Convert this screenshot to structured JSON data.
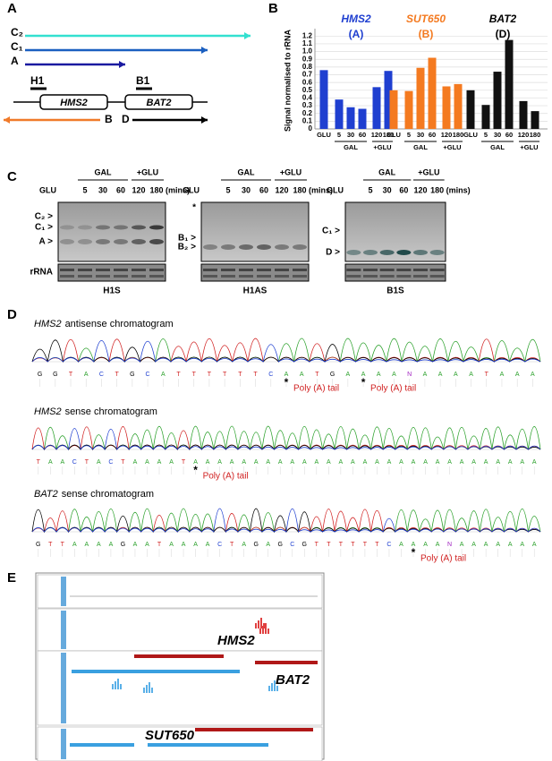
{
  "panel_labels": [
    "A",
    "B",
    "C",
    "D",
    "E"
  ],
  "panel_a": {
    "transcripts": [
      "C₂",
      "C₁",
      "A"
    ],
    "probes": [
      "H1",
      "B1"
    ],
    "genes": [
      "HMS2",
      "BAT2"
    ],
    "antisense": [
      "B",
      "D"
    ]
  },
  "chart_data": [
    {
      "type": "bar",
      "title": "HMS2",
      "subtitle": "(A)",
      "color": "#1f3fd0",
      "categories": [
        "GLU",
        "5",
        "30",
        "60",
        "120",
        "180"
      ],
      "values": [
        0.76,
        0.38,
        0.28,
        0.26,
        0.54,
        0.75
      ],
      "groups": [
        "GAL",
        "+GLU"
      ],
      "ylabel": "Signal normalised to rRNA",
      "ylim": [
        0,
        1.25
      ],
      "yticks": [
        0,
        0.1,
        0.2,
        0.3,
        0.4,
        0.5,
        0.6,
        0.7,
        0.8,
        0.9,
        {
          "value": 1,
          "label": "1.0"
        },
        1.1,
        1.2
      ],
      "grid": true
    },
    {
      "type": "bar",
      "title": "SUT650",
      "subtitle": "(B)",
      "color": "#f47a20",
      "categories": [
        "GLU",
        "5",
        "30",
        "60",
        "120",
        "180"
      ],
      "values": [
        0.5,
        0.49,
        0.79,
        0.92,
        0.55,
        0.58
      ],
      "groups": [
        "GAL",
        "+GLU"
      ]
    },
    {
      "type": "bar",
      "title": "BAT2",
      "subtitle": "(D)",
      "color": "#111111",
      "categories": [
        "GLU",
        "5",
        "30",
        "60",
        "120",
        "180"
      ],
      "values": [
        0.5,
        0.31,
        0.74,
        1.15,
        0.36,
        0.23
      ],
      "groups": [
        "GAL",
        "+GLU"
      ]
    }
  ],
  "panel_c": {
    "blots": [
      {
        "probe": "H1S",
        "conditions": [
          "GAL",
          "+GLU"
        ],
        "lanes": [
          "GLU",
          "5",
          "30",
          "60",
          "120",
          "180"
        ],
        "unit": "(mins)",
        "bands": [
          "C₂ >",
          "C₁ >",
          "A >"
        ],
        "loading": "rRNA"
      },
      {
        "probe": "H1AS",
        "conditions": [
          "GAL",
          "+GLU"
        ],
        "lanes": [
          "GLU",
          "5",
          "30",
          "60",
          "120",
          "180"
        ],
        "unit": "(mins)",
        "bands": [
          "*",
          "B₁ >",
          "B₂ >"
        ]
      },
      {
        "probe": "B1S",
        "conditions": [
          "GAL",
          "+GLU"
        ],
        "lanes": [
          "GLU",
          "5",
          "30",
          "60",
          "120",
          "180"
        ],
        "unit": "(mins)",
        "bands": [
          "C₁ >",
          "D >"
        ]
      }
    ]
  },
  "panel_d": {
    "tracks": [
      {
        "gene": "HMS2",
        "label": "antisense chromatogram",
        "sequence": [
          "G",
          "G",
          "T",
          "A",
          "C",
          "T",
          "G",
          "C",
          "A",
          "T",
          "T",
          "T",
          "T",
          "T",
          "T",
          "C",
          "A",
          "A",
          "T",
          "G",
          "A",
          "A",
          "A",
          "A",
          "N",
          "A",
          "A",
          "A",
          "A",
          "T",
          "A",
          "A",
          "A"
        ],
        "annotations": [
          {
            "star": "*",
            "text": "Poly (A) tail"
          },
          {
            "star": "*",
            "text": "Poly (A) tail"
          }
        ]
      },
      {
        "gene": "HMS2",
        "label": "sense chromatogram",
        "sequence": [
          "T",
          "A",
          "A",
          "C",
          "T",
          "A",
          "C",
          "T",
          "A",
          "A",
          "A",
          "A",
          "T",
          "A",
          "A",
          "A",
          "A",
          "A",
          "A",
          "A",
          "A",
          "A",
          "A",
          "A",
          "A",
          "A",
          "A",
          "A",
          "A",
          "A",
          "A",
          "A",
          "A",
          "A",
          "A",
          "A",
          "A",
          "A",
          "A",
          "A",
          "A",
          "A"
        ],
        "annotations": [
          {
            "star": "*",
            "text": "Poly (A) tail"
          }
        ]
      },
      {
        "gene": "BAT2",
        "label": "sense chromatogram",
        "sequence": [
          "G",
          "T",
          "T",
          "A",
          "A",
          "A",
          "A",
          "G",
          "A",
          "A",
          "T",
          "A",
          "A",
          "A",
          "A",
          "C",
          "T",
          "A",
          "G",
          "A",
          "G",
          "C",
          "G",
          "T",
          "T",
          "T",
          "T",
          "T",
          "T",
          "C",
          "A",
          "A",
          "A",
          "A",
          "N",
          "A",
          "A",
          "A",
          "A",
          "A",
          "A",
          "A"
        ],
        "annotations": [
          {
            "star": "*",
            "text": "Poly (A) tail"
          }
        ]
      }
    ]
  },
  "panel_e": {
    "labels": [
      "HMS2",
      "BAT2",
      "SUT650"
    ]
  }
}
